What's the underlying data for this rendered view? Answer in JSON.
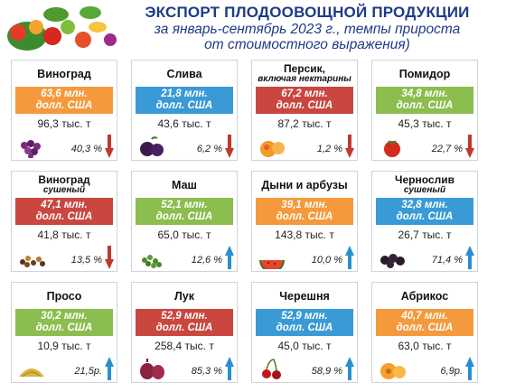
{
  "header": {
    "title": "ЭКСПОРТ ПЛОДООВОЩНОЙ ПРОДУКЦИИ",
    "subtitle_1": "за январь-сентябрь 2023 г., темпы прироста",
    "subtitle_2": "от стоимостного выражения)"
  },
  "colors": {
    "accent": "#1f3a8a",
    "orange": "#f59a3c",
    "red": "#c9473f",
    "green": "#8cbd4f",
    "blue": "#3a9ad6",
    "down": "#c0392b",
    "up": "#2a8fce"
  },
  "cards": [
    {
      "name": "Виноград",
      "sub": "",
      "value_1": "63,6 млн.",
      "value_2": "долл. США",
      "tons": "96,3 тыс. т",
      "pct": "40,3 %",
      "trend": "down",
      "color": "orange",
      "icon": "grapes-icon"
    },
    {
      "name": "Слива",
      "sub": "",
      "value_1": "21,8 млн.",
      "value_2": "долл. США",
      "tons": "43,6 тыс. т",
      "pct": "6,2 %",
      "trend": "down",
      "color": "blue",
      "icon": "plum-icon"
    },
    {
      "name": "Персик,",
      "sub": "включая нектарины",
      "value_1": "67,2 млн.",
      "value_2": "долл. США",
      "tons": "87,2 тыс. т",
      "pct": "1,2 %",
      "trend": "down",
      "color": "red",
      "icon": "peach-icon"
    },
    {
      "name": "Помидор",
      "sub": "",
      "value_1": "34,8 млн.",
      "value_2": "долл. США",
      "tons": "45,3 тыс. т",
      "pct": "22,7 %",
      "trend": "down",
      "color": "green",
      "icon": "tomato-icon"
    },
    {
      "name": "Виноград",
      "sub": "сушеный",
      "value_1": "47,1 млн.",
      "value_2": "долл. США",
      "tons": "41,8 тыс. т",
      "pct": "13,5 %",
      "trend": "down",
      "color": "red",
      "icon": "raisins-icon"
    },
    {
      "name": "Маш",
      "sub": "",
      "value_1": "52,1 млн.",
      "value_2": "долл. США",
      "tons": "65,0 тыс. т",
      "pct": "12,6 %",
      "trend": "up",
      "color": "green",
      "icon": "mung-bean-icon"
    },
    {
      "name": "Дыни и арбузы",
      "sub": "",
      "value_1": "39,1 млн.",
      "value_2": "долл. США",
      "tons": "143,8 тыс. т",
      "pct": "10,0 %",
      "trend": "up",
      "color": "orange",
      "icon": "melon-icon"
    },
    {
      "name": "Чернослив",
      "sub": "сушеный",
      "value_1": "32,8 млн.",
      "value_2": "долл. США",
      "tons": "26,7 тыс. т",
      "pct": "71,4 %",
      "trend": "up",
      "color": "blue",
      "icon": "prunes-icon"
    },
    {
      "name": "Просо",
      "sub": "",
      "value_1": "30,2 млн.",
      "value_2": "долл. США",
      "tons": "10,9 тыс. т",
      "pct": "21,5р.",
      "trend": "up",
      "color": "green",
      "icon": "millet-icon"
    },
    {
      "name": "Лук",
      "sub": "",
      "value_1": "52,9 млн.",
      "value_2": "долл. США",
      "tons": "258,4 тыс. т",
      "pct": "85,3 %",
      "trend": "up",
      "color": "red",
      "icon": "onion-icon"
    },
    {
      "name": "Черешня",
      "sub": "",
      "value_1": "52,9 млн.",
      "value_2": "долл. США",
      "tons": "45,0 тыс. т",
      "pct": "58,9 %",
      "trend": "up",
      "color": "blue",
      "icon": "cherry-icon"
    },
    {
      "name": "Абрикос",
      "sub": "",
      "value_1": "40,7 млн.",
      "value_2": "долл. США",
      "tons": "63,0 тыс. т",
      "pct": "6,9р.",
      "trend": "up",
      "color": "orange",
      "icon": "apricot-icon"
    }
  ]
}
